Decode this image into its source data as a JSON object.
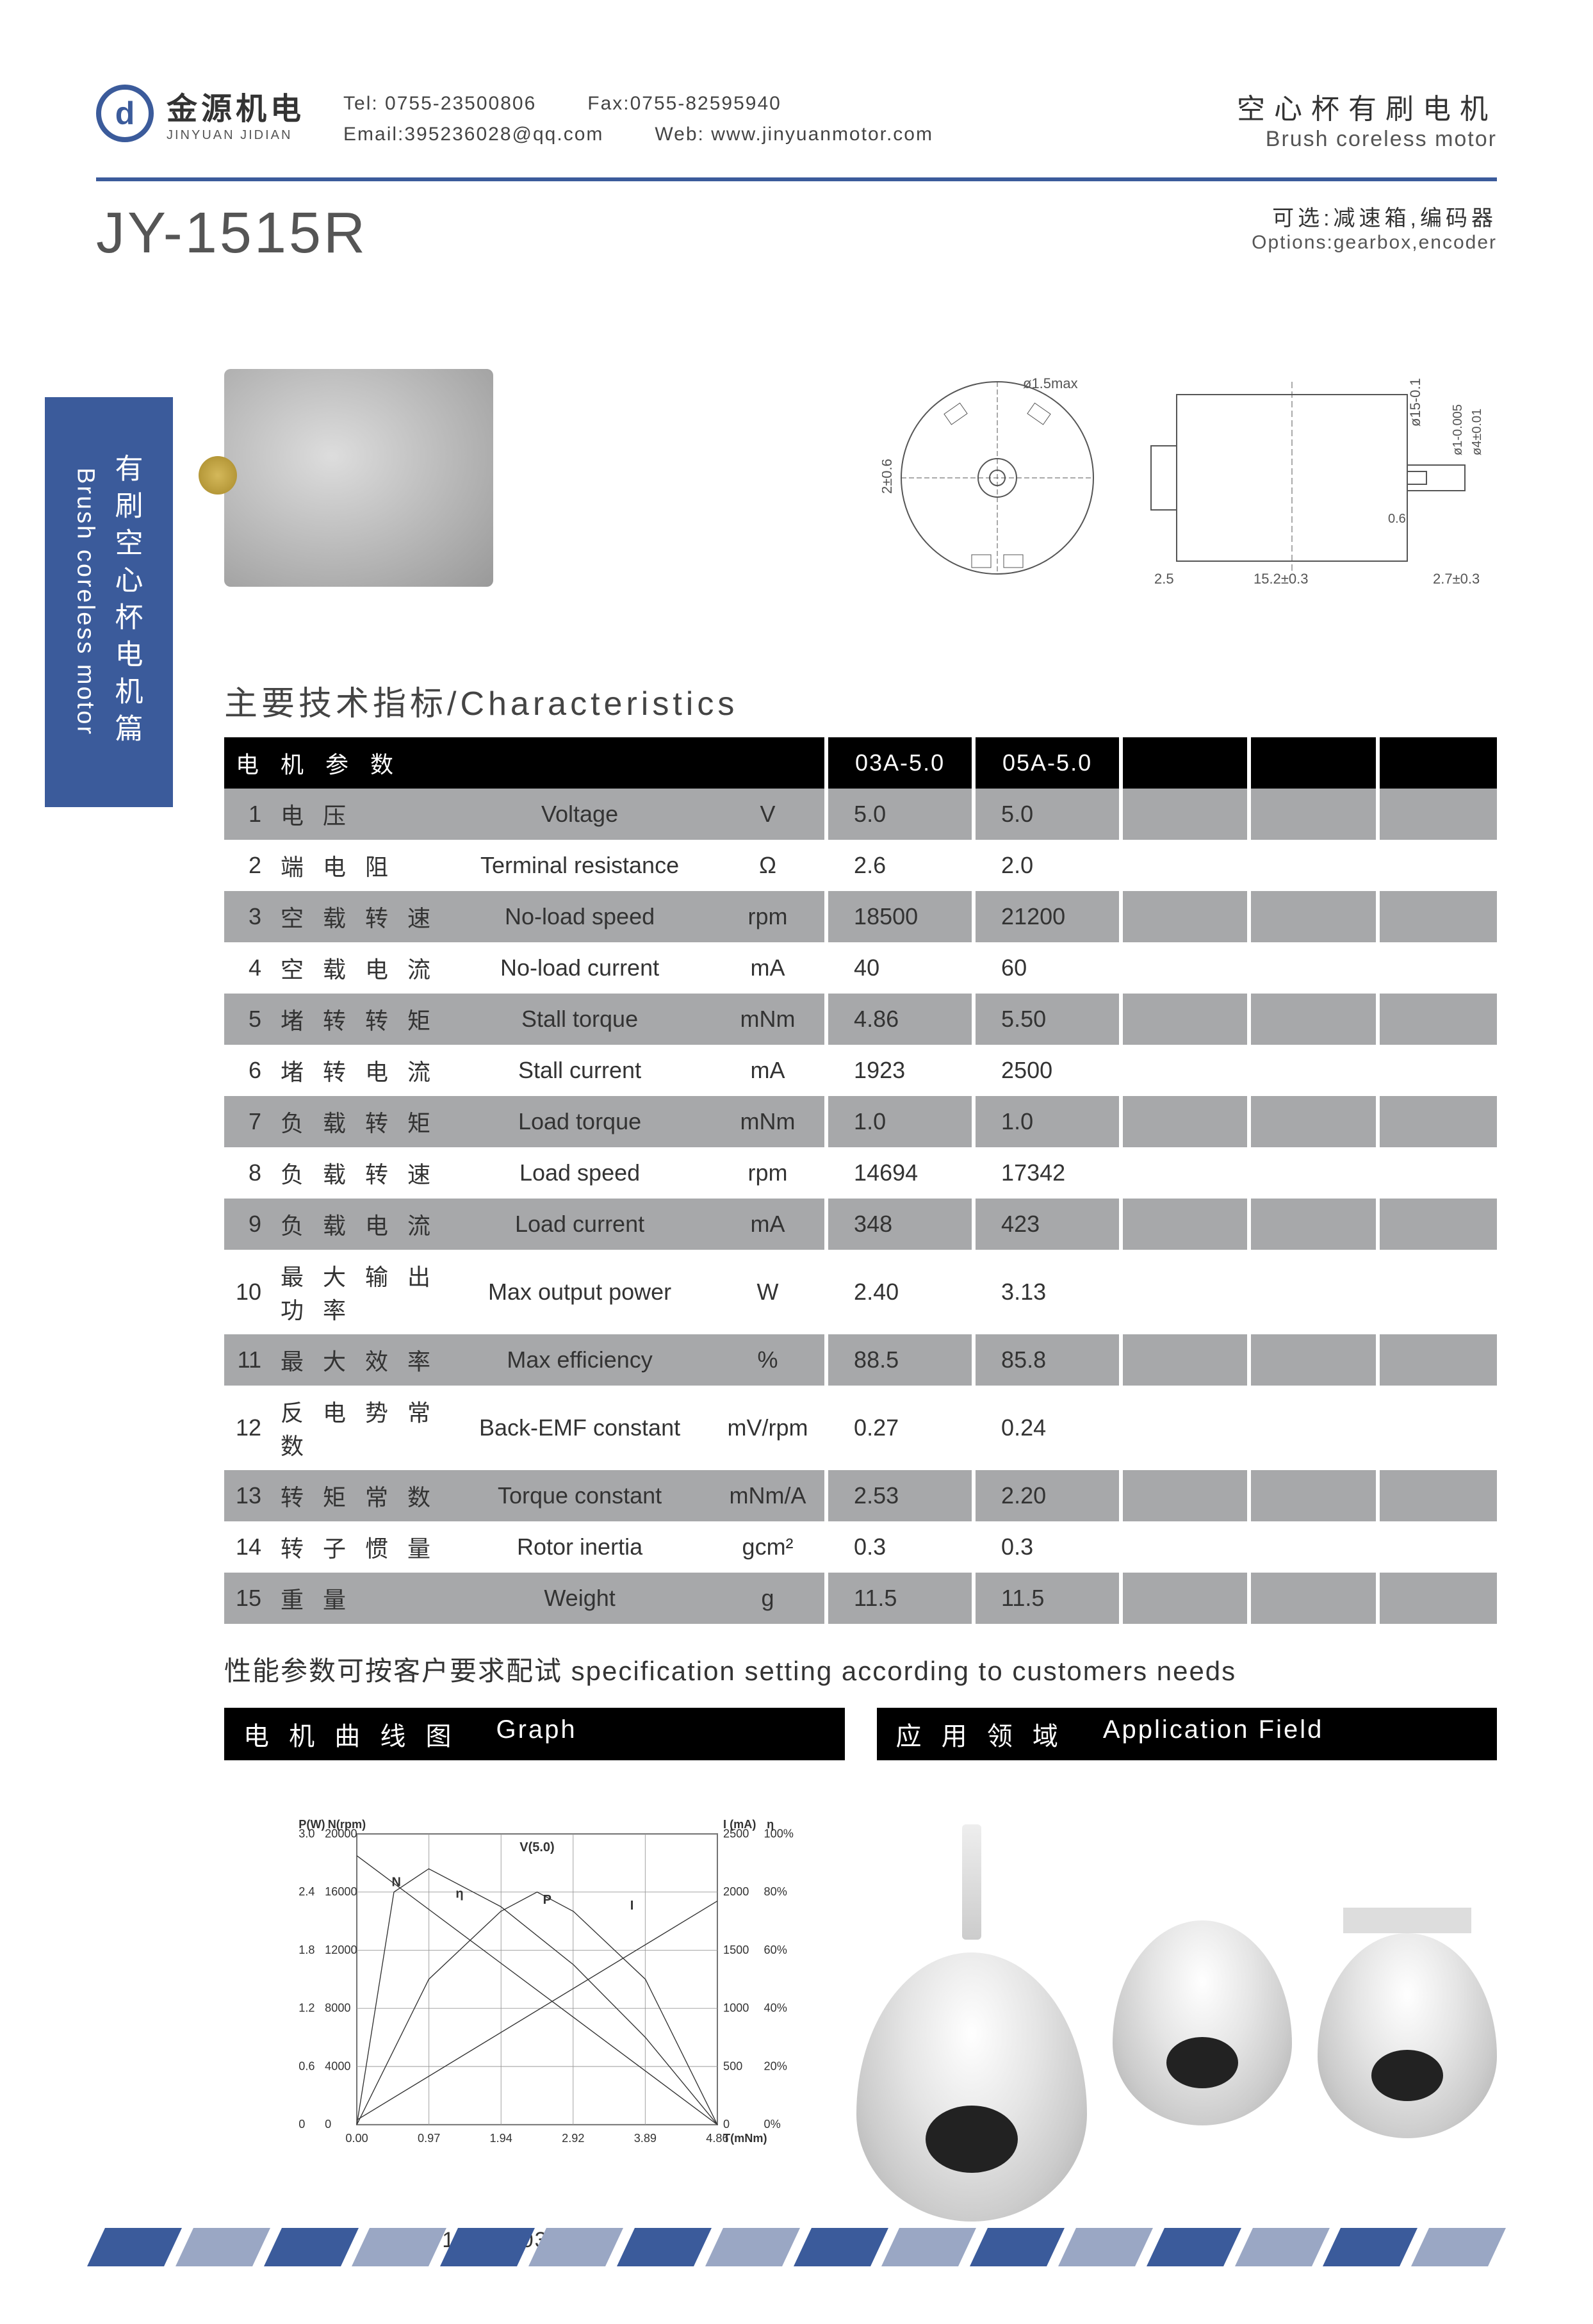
{
  "header": {
    "logo_cn": "金源机电",
    "logo_en": "JINYUAN JIDIAN",
    "tel_label": "Tel:",
    "tel": "0755-23500806",
    "fax_label": "Fax:",
    "fax": "0755-82595940",
    "email_label": "Email:",
    "email": "395236028@qq.com",
    "web_label": "Web:",
    "web": "www.jinyuanmotor.com",
    "product_cn": "空心杯有刷电机",
    "product_en": "Brush coreless motor"
  },
  "sub": {
    "model": "JY-1515R",
    "options_cn": "可选:减速箱,编码器",
    "options_en": "Options:gearbox,encoder"
  },
  "side": {
    "cn": "有刷空心杯电机篇",
    "en": "Brush coreless motor"
  },
  "drawings": {
    "dims": [
      "ø1.5max",
      "2±0.6",
      "ø15-0.1",
      "2.5",
      "15.2±0.3",
      "0.6",
      "ø1-0.005",
      "ø4±0.01",
      "2.7±0.3"
    ]
  },
  "char": {
    "title": "主要技术指标/Characteristics",
    "hdr_param": "电 机 参 数",
    "models": [
      "03A-5.0",
      "05A-5.0"
    ],
    "rows": [
      {
        "n": "1",
        "cn": "电 压",
        "en": "Voltage",
        "unit": "V",
        "v": [
          "5.0",
          "5.0"
        ]
      },
      {
        "n": "2",
        "cn": "端 电 阻",
        "en": "Terminal resistance",
        "unit": "Ω",
        "v": [
          "2.6",
          "2.0"
        ]
      },
      {
        "n": "3",
        "cn": "空 载 转 速",
        "en": "No-load speed",
        "unit": "rpm",
        "v": [
          "18500",
          "21200"
        ]
      },
      {
        "n": "4",
        "cn": "空 载 电 流",
        "en": "No-load current",
        "unit": "mA",
        "v": [
          "40",
          "60"
        ]
      },
      {
        "n": "5",
        "cn": "堵 转 转 矩",
        "en": "Stall torque",
        "unit": "mNm",
        "v": [
          "4.86",
          "5.50"
        ]
      },
      {
        "n": "6",
        "cn": "堵 转 电 流",
        "en": "Stall current",
        "unit": "mA",
        "v": [
          "1923",
          "2500"
        ]
      },
      {
        "n": "7",
        "cn": "负 载 转 矩",
        "en": "Load torque",
        "unit": "mNm",
        "v": [
          "1.0",
          "1.0"
        ]
      },
      {
        "n": "8",
        "cn": "负 载 转 速",
        "en": "Load speed",
        "unit": "rpm",
        "v": [
          "14694",
          "17342"
        ]
      },
      {
        "n": "9",
        "cn": "负 载 电 流",
        "en": "Load current",
        "unit": "mA",
        "v": [
          "348",
          "423"
        ]
      },
      {
        "n": "10",
        "cn": "最 大 输 出 功 率",
        "en": "Max output power",
        "unit": "W",
        "v": [
          "2.40",
          "3.13"
        ]
      },
      {
        "n": "11",
        "cn": "最 大 效 率",
        "en": "Max efficiency",
        "unit": "%",
        "v": [
          "88.5",
          "85.8"
        ]
      },
      {
        "n": "12",
        "cn": "反 电 势 常 数",
        "en": "Back-EMF constant",
        "unit": "mV/rpm",
        "v": [
          "0.27",
          "0.24"
        ]
      },
      {
        "n": "13",
        "cn": "转 矩 常 数",
        "en": "Torque constant",
        "unit": "mNm/A",
        "v": [
          "2.53",
          "2.20"
        ]
      },
      {
        "n": "14",
        "cn": "转 子 惯 量",
        "en": "Rotor inertia",
        "unit": "gcm²",
        "v": [
          "0.3",
          "0.3"
        ]
      },
      {
        "n": "15",
        "cn": "重 量",
        "en": "Weight",
        "unit": "g",
        "v": [
          "11.5",
          "11.5"
        ]
      }
    ]
  },
  "note": "性能参数可按客户要求配试 specification setting according to customers needs",
  "sections": {
    "graph_cn": "电 机 曲 线 图",
    "graph_en": "Graph",
    "app_cn": "应 用 领 域",
    "app_en": "Application Field"
  },
  "graph": {
    "caption": "1515R-03A-5.0",
    "title_v": "V(5.0)",
    "axis_left1_label": "P(W)",
    "axis_left2_label": "N(rpm)",
    "axis_right1_label": "I (mA)",
    "axis_right2_label": "η",
    "axis_bottom_label": "T(mNm)",
    "p_ticks": [
      "0",
      "0.6",
      "1.2",
      "1.8",
      "2.4",
      "3.0"
    ],
    "n_ticks": [
      "0",
      "4000",
      "8000",
      "12000",
      "16000",
      "20000"
    ],
    "i_ticks": [
      "0",
      "500",
      "1000",
      "1500",
      "2000",
      "2500"
    ],
    "eta_ticks": [
      "0%",
      "20%",
      "40%",
      "60%",
      "80%",
      "100%"
    ],
    "t_ticks": [
      "0.00",
      "0.97",
      "1.94",
      "2.92",
      "3.89",
      "4.86"
    ],
    "curve_labels": [
      "N",
      "η",
      "P",
      "I"
    ],
    "colors": {
      "axis": "#333333",
      "grid": "#999999",
      "curve": "#333333",
      "background": "#ffffff"
    },
    "font_sizes": {
      "axis_label": 18,
      "tick": 16,
      "curve_label": 18
    },
    "line_width": 1.5,
    "xlim": [
      0,
      4.86
    ],
    "p_ylim": [
      0,
      3.0
    ],
    "n_ylim": [
      0,
      20000
    ],
    "i_ylim": [
      0,
      2500
    ],
    "eta_ylim": [
      0,
      100
    ],
    "series": {
      "N_speed": {
        "type": "line",
        "x": [
          0,
          4.86
        ],
        "y_rpm": [
          18500,
          0
        ]
      },
      "I_current": {
        "type": "line",
        "x": [
          0,
          4.86
        ],
        "y_mA": [
          40,
          1923
        ]
      },
      "P_power": {
        "type": "curve",
        "x": [
          0,
          0.97,
          1.94,
          2.43,
          2.92,
          3.89,
          4.86
        ],
        "y_W": [
          0,
          1.5,
          2.2,
          2.4,
          2.2,
          1.5,
          0
        ]
      },
      "eta_efficiency": {
        "type": "curve",
        "x": [
          0,
          0.5,
          0.97,
          1.94,
          2.92,
          3.89,
          4.86
        ],
        "y_pct": [
          0,
          80,
          88,
          75,
          55,
          30,
          0
        ]
      }
    }
  },
  "footer_colors": [
    "#3b5b9b",
    "#9aa7c4",
    "#3b5b9b",
    "#9aa7c4",
    "#3b5b9b",
    "#9aa7c4",
    "#3b5b9b",
    "#9aa7c4",
    "#3b5b9b",
    "#9aa7c4",
    "#3b5b9b",
    "#9aa7c4",
    "#3b5b9b",
    "#9aa7c4",
    "#3b5b9b",
    "#9aa7c4"
  ]
}
